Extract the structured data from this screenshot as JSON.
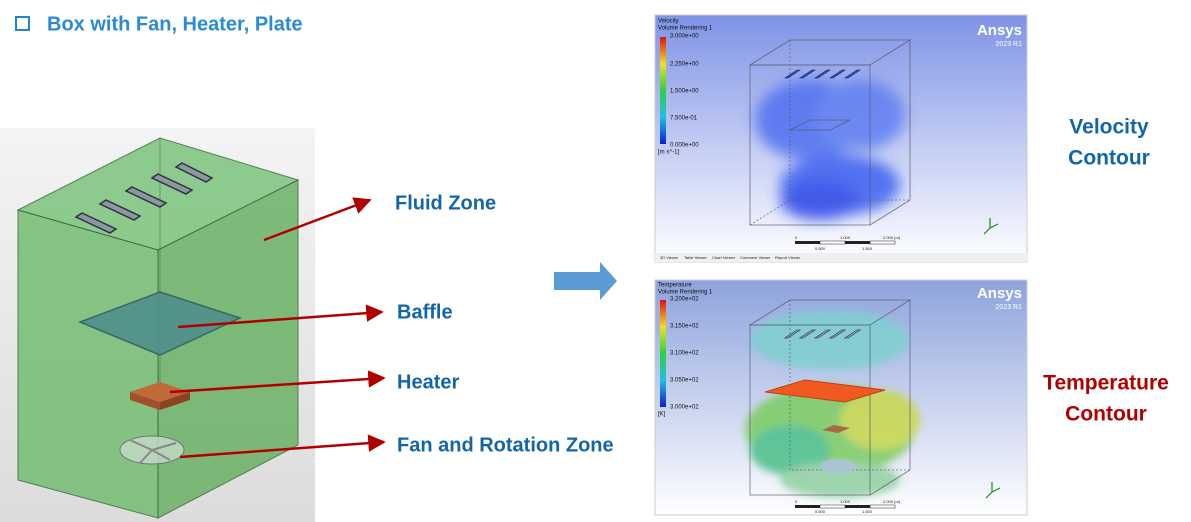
{
  "header": {
    "title": "Box with Fan, Heater, Plate"
  },
  "model": {
    "labels": [
      "Fluid Zone",
      "Baffle",
      "Heater",
      "Fan and Rotation Zone"
    ]
  },
  "results": [
    {
      "caption": [
        "Velocity",
        "Contour"
      ],
      "variable": "Velocity",
      "rendering": "Volume Rendering 1",
      "legend": [
        "3.000e+00",
        "2.250e+00",
        "1.500e+00",
        "7.500e-01",
        "0.000e+00"
      ],
      "unit": "[m s^-1]",
      "brand": "Ansys",
      "version": "2023 R1",
      "scale": [
        "0",
        "1.000",
        "2.000 (m)",
        "0.500",
        "1.500"
      ],
      "tabs": [
        "3D Viewer",
        "Table Viewer",
        "Chart Viewer",
        "Comment Viewer",
        "Report Viewer"
      ]
    },
    {
      "caption": [
        "Temperature",
        "Contour"
      ],
      "variable": "Temperature",
      "rendering": "Volume Rendering 1",
      "legend": [
        "3.200e+02",
        "3.150e+02",
        "3.100e+02",
        "3.050e+02",
        "3.000e+02"
      ],
      "unit": "[K]",
      "brand": "Ansys",
      "version": "2023 R1",
      "scale": [
        "0",
        "1.000",
        "2.000 (m)",
        "0.500",
        "1.500"
      ]
    }
  ]
}
